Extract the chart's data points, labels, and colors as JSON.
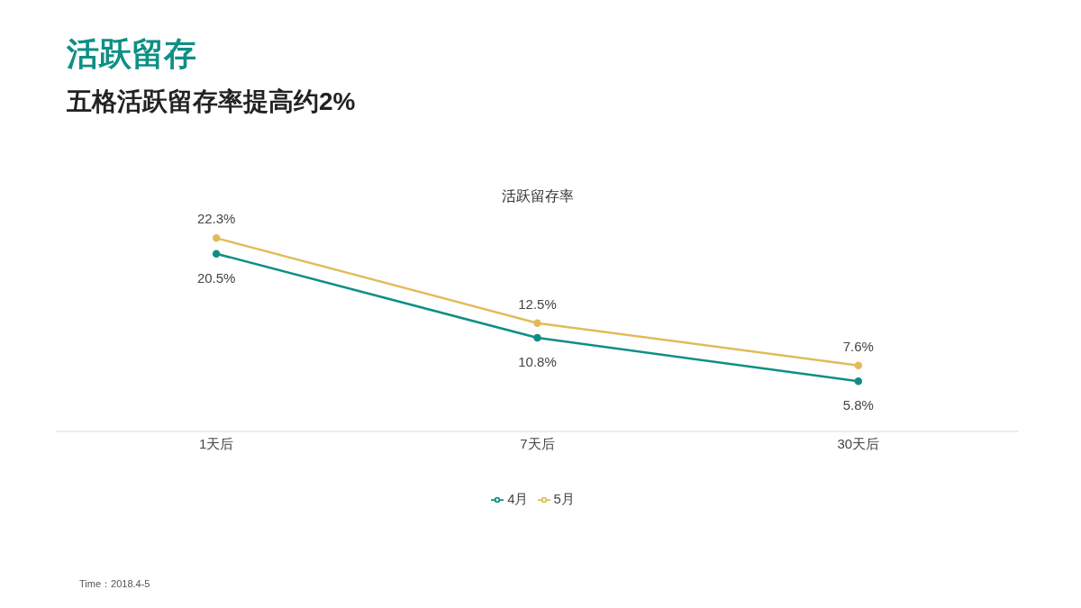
{
  "chart_data": {
    "type": "line",
    "title": "活跃留存",
    "subtitle": "五格活跃留存率提高约2%",
    "annotations": [
      "活跃留存率",
      "Time：2018.4-5"
    ],
    "categories": [
      "1天后",
      "7天后",
      "30天后"
    ],
    "series": [
      {
        "name": "4月",
        "color": "#0e8f85",
        "values": [
          20.5,
          10.8,
          5.8
        ],
        "value_labels": [
          "20.5%",
          "10.8%",
          "5.8%"
        ]
      },
      {
        "name": "5月",
        "color": "#e0bc58",
        "values": [
          22.3,
          12.5,
          7.6
        ],
        "value_labels": [
          "22.3%",
          "12.5%",
          "7.6%"
        ]
      }
    ],
    "tick_labels": "x",
    "grid": false,
    "legend": "bottom",
    "marker": "circle",
    "line_style": "solid"
  }
}
